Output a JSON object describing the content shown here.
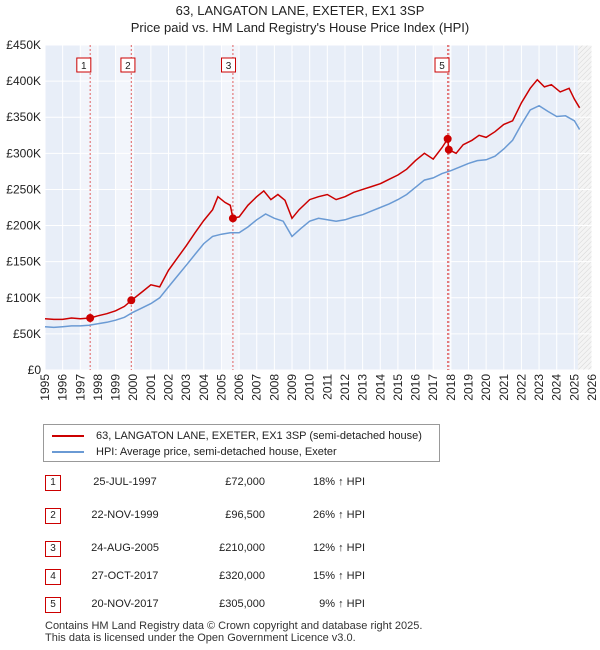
{
  "title_line1": "63, LANGATON LANE, EXETER, EX1 3SP",
  "title_line2": "Price paid vs. HM Land Registry's House Price Index (HPI)",
  "chart_data": {
    "type": "line",
    "title": "63, LANGATON LANE, EXETER, EX1 3SP",
    "subtitle": "Price paid vs. HM Land Registry's House Price Index (HPI)",
    "xlabel": "",
    "ylabel": "",
    "xlim": [
      1995,
      2026
    ],
    "ylim": [
      0,
      450000
    ],
    "x_ticks": [
      1995,
      1996,
      1997,
      1998,
      1999,
      2000,
      2001,
      2002,
      2003,
      2004,
      2005,
      2006,
      2007,
      2008,
      2009,
      2010,
      2011,
      2012,
      2013,
      2014,
      2015,
      2016,
      2017,
      2018,
      2019,
      2020,
      2021,
      2022,
      2023,
      2024,
      2025,
      2026
    ],
    "y_ticks": [
      {
        "value": 0,
        "label": "£0"
      },
      {
        "value": 50000,
        "label": "£50K"
      },
      {
        "value": 100000,
        "label": "£100K"
      },
      {
        "value": 150000,
        "label": "£150K"
      },
      {
        "value": 200000,
        "label": "£200K"
      },
      {
        "value": 250000,
        "label": "£250K"
      },
      {
        "value": 300000,
        "label": "£300K"
      },
      {
        "value": 350000,
        "label": "£350K"
      },
      {
        "value": 400000,
        "label": "£400K"
      },
      {
        "value": 450000,
        "label": "£450K"
      }
    ],
    "grid": true,
    "legend_position": "below",
    "series": [
      {
        "name": "63, LANGATON LANE, EXETER, EX1 3SP (semi-detached house)",
        "color": "#cc0000",
        "points": [
          [
            1995.0,
            71000
          ],
          [
            1995.5,
            70000
          ],
          [
            1996.0,
            70000
          ],
          [
            1996.5,
            72000
          ],
          [
            1997.0,
            71000
          ],
          [
            1997.56,
            72000
          ],
          [
            1998.0,
            75000
          ],
          [
            1998.5,
            78000
          ],
          [
            1999.0,
            82000
          ],
          [
            1999.5,
            88000
          ],
          [
            1999.9,
            96500
          ],
          [
            2000.5,
            108000
          ],
          [
            2001.0,
            118000
          ],
          [
            2001.5,
            115000
          ],
          [
            2002.0,
            138000
          ],
          [
            2002.5,
            155000
          ],
          [
            2003.0,
            172000
          ],
          [
            2003.5,
            190000
          ],
          [
            2004.0,
            207000
          ],
          [
            2004.5,
            222000
          ],
          [
            2004.8,
            240000
          ],
          [
            2005.2,
            232000
          ],
          [
            2005.5,
            228000
          ],
          [
            2005.65,
            210000
          ],
          [
            2006.0,
            212000
          ],
          [
            2006.5,
            228000
          ],
          [
            2007.0,
            240000
          ],
          [
            2007.4,
            248000
          ],
          [
            2007.8,
            236000
          ],
          [
            2008.2,
            243000
          ],
          [
            2008.6,
            235000
          ],
          [
            2009.0,
            210000
          ],
          [
            2009.4,
            222000
          ],
          [
            2010.0,
            236000
          ],
          [
            2010.5,
            240000
          ],
          [
            2011.0,
            243000
          ],
          [
            2011.5,
            236000
          ],
          [
            2012.0,
            240000
          ],
          [
            2012.5,
            246000
          ],
          [
            2013.0,
            250000
          ],
          [
            2013.5,
            254000
          ],
          [
            2014.0,
            258000
          ],
          [
            2014.5,
            264000
          ],
          [
            2015.0,
            270000
          ],
          [
            2015.5,
            278000
          ],
          [
            2016.0,
            290000
          ],
          [
            2016.5,
            300000
          ],
          [
            2017.0,
            292000
          ],
          [
            2017.5,
            308000
          ],
          [
            2017.82,
            320000
          ],
          [
            2017.885,
            305000
          ],
          [
            2018.3,
            300000
          ],
          [
            2018.7,
            312000
          ],
          [
            2019.2,
            318000
          ],
          [
            2019.6,
            325000
          ],
          [
            2020.0,
            322000
          ],
          [
            2020.5,
            330000
          ],
          [
            2021.0,
            340000
          ],
          [
            2021.5,
            345000
          ],
          [
            2022.0,
            370000
          ],
          [
            2022.5,
            390000
          ],
          [
            2022.9,
            402000
          ],
          [
            2023.3,
            392000
          ],
          [
            2023.7,
            395000
          ],
          [
            2024.2,
            385000
          ],
          [
            2024.7,
            390000
          ],
          [
            2025.0,
            375000
          ],
          [
            2025.3,
            363000
          ]
        ]
      },
      {
        "name": "HPI: Average price, semi-detached house, Exeter",
        "color": "#6a9ad4",
        "points": [
          [
            1995.0,
            60000
          ],
          [
            1995.5,
            59000
          ],
          [
            1996.0,
            60000
          ],
          [
            1996.5,
            61000
          ],
          [
            1997.0,
            61000
          ],
          [
            1997.5,
            62000
          ],
          [
            1998.0,
            64000
          ],
          [
            1998.5,
            66000
          ],
          [
            1999.0,
            69000
          ],
          [
            1999.5,
            73000
          ],
          [
            2000.0,
            80000
          ],
          [
            2000.5,
            86000
          ],
          [
            2001.0,
            92000
          ],
          [
            2001.5,
            100000
          ],
          [
            2002.0,
            115000
          ],
          [
            2002.5,
            130000
          ],
          [
            2003.0,
            145000
          ],
          [
            2003.5,
            160000
          ],
          [
            2004.0,
            175000
          ],
          [
            2004.5,
            185000
          ],
          [
            2005.0,
            188000
          ],
          [
            2005.5,
            190000
          ],
          [
            2006.0,
            190000
          ],
          [
            2006.5,
            198000
          ],
          [
            2007.0,
            208000
          ],
          [
            2007.5,
            216000
          ],
          [
            2008.0,
            210000
          ],
          [
            2008.5,
            206000
          ],
          [
            2009.0,
            185000
          ],
          [
            2009.5,
            196000
          ],
          [
            2010.0,
            206000
          ],
          [
            2010.5,
            210000
          ],
          [
            2011.0,
            208000
          ],
          [
            2011.5,
            206000
          ],
          [
            2012.0,
            208000
          ],
          [
            2012.5,
            212000
          ],
          [
            2013.0,
            215000
          ],
          [
            2013.5,
            220000
          ],
          [
            2014.0,
            225000
          ],
          [
            2014.5,
            230000
          ],
          [
            2015.0,
            236000
          ],
          [
            2015.5,
            243000
          ],
          [
            2016.0,
            253000
          ],
          [
            2016.5,
            263000
          ],
          [
            2017.0,
            266000
          ],
          [
            2017.5,
            272000
          ],
          [
            2018.0,
            276000
          ],
          [
            2018.5,
            281000
          ],
          [
            2019.0,
            286000
          ],
          [
            2019.5,
            290000
          ],
          [
            2020.0,
            291000
          ],
          [
            2020.5,
            296000
          ],
          [
            2021.0,
            306000
          ],
          [
            2021.5,
            318000
          ],
          [
            2022.0,
            340000
          ],
          [
            2022.5,
            360000
          ],
          [
            2023.0,
            366000
          ],
          [
            2023.5,
            358000
          ],
          [
            2024.0,
            351000
          ],
          [
            2024.5,
            352000
          ],
          [
            2025.0,
            345000
          ],
          [
            2025.3,
            333000
          ]
        ]
      }
    ],
    "sales": [
      {
        "id": "1",
        "x": 1997.56,
        "price": 72000
      },
      {
        "id": "2",
        "x": 1999.89,
        "price": 96500
      },
      {
        "id": "3",
        "x": 2005.65,
        "price": 210000
      },
      {
        "id": "4",
        "x": 2017.82,
        "price": 320000
      },
      {
        "id": "5",
        "x": 2017.885,
        "price": 305000
      }
    ],
    "marker_labels": [
      "1",
      "2",
      "3",
      "5"
    ],
    "projection_start": 2025.2
  },
  "legend": {
    "red_label": "63, LANGATON LANE, EXETER, EX1 3SP (semi-detached house)",
    "blue_label": "HPI: Average price, semi-detached house, Exeter",
    "red_color": "#cc0000",
    "blue_color": "#6a9ad4"
  },
  "transactions": [
    {
      "num": "1",
      "date": "25-JUL-1997",
      "price": "£72,000",
      "delta": "18% ↑ HPI"
    },
    {
      "num": "2",
      "date": "22-NOV-1999",
      "price": "£96,500",
      "delta": "26% ↑ HPI"
    },
    {
      "num": "3",
      "date": "24-AUG-2005",
      "price": "£210,000",
      "delta": "12% ↑ HPI"
    },
    {
      "num": "4",
      "date": "27-OCT-2017",
      "price": "£320,000",
      "delta": "15% ↑ HPI"
    },
    {
      "num": "5",
      "date": "20-NOV-2017",
      "price": "£305,000",
      "delta": "9% ↑ HPI"
    }
  ],
  "footer_line1": "Contains HM Land Registry data © Crown copyright and database right 2025.",
  "footer_line2": "This data is licensed under the Open Government Licence v3.0."
}
